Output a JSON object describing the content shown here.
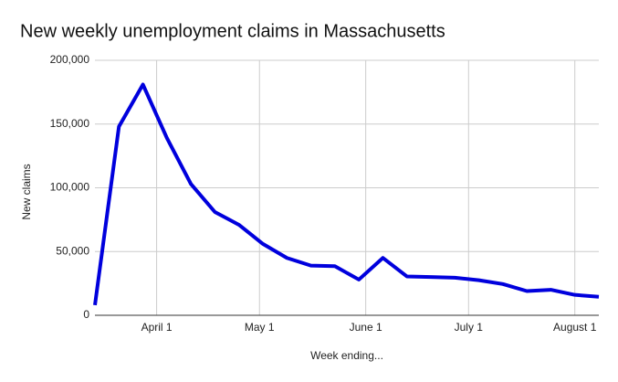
{
  "chart_data": {
    "type": "line",
    "title": "New weekly unemployment claims in Massachusetts",
    "x_label": "Week ending...",
    "y_label": "New claims",
    "x": [
      "March 14",
      "March 21",
      "March 28",
      "April 4",
      "April 11",
      "April 18",
      "April 25",
      "May 2",
      "May 9",
      "May 16",
      "May 23",
      "May 30",
      "June 6",
      "June 13",
      "June 20",
      "June 27",
      "July 4",
      "July 11",
      "July 18",
      "July 25",
      "August 1",
      "August 8"
    ],
    "series": [
      {
        "name": "New claims",
        "color": "#0000dd",
        "values": [
          8000,
          148000,
          181000,
          139000,
          103000,
          81000,
          71000,
          56000,
          45000,
          39000,
          38500,
          28000,
          45000,
          30500,
          30000,
          29500,
          27500,
          24500,
          19000,
          20000,
          16000,
          14500
        ]
      }
    ],
    "xlim": [
      "March 14",
      "August 8"
    ],
    "xticks": [
      "April 1",
      "May 1",
      "June 1",
      "July 1",
      "August 1"
    ],
    "ylim": [
      0,
      200000
    ],
    "yticks": [
      0,
      {
        "value": 50000,
        "label": "50,000"
      },
      {
        "value": 100000,
        "label": "100,000"
      },
      {
        "value": 150000,
        "label": "150,000"
      },
      {
        "value": 200000,
        "label": "200,000"
      }
    ],
    "grid": true
  }
}
